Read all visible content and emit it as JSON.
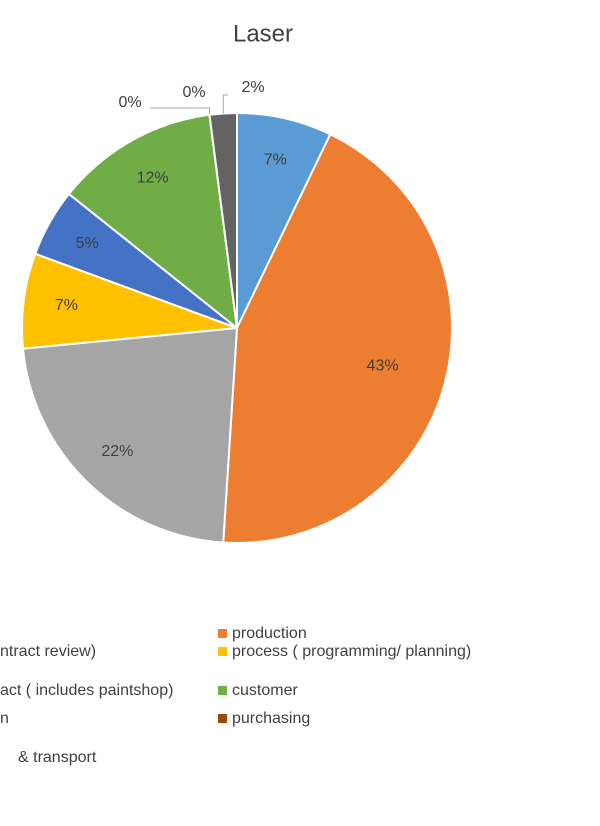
{
  "chart_data": {
    "type": "pie",
    "title": "Laser",
    "categories": [
      null,
      "production",
      "ntract review)",
      "process ( programming/ planning)",
      "act ( includes paintshop)",
      "customer",
      "n",
      "purchasing",
      "& transport"
    ],
    "values": [
      7,
      43,
      22,
      7,
      5,
      12,
      0,
      0,
      2
    ],
    "value_labels": [
      "7%",
      "43%",
      "22%",
      "7%",
      "5%",
      "12%",
      "0%",
      "0%",
      "2%"
    ],
    "colors": [
      "#5b9bd5",
      "#ed7d31",
      "#a5a5a5",
      "#ffc000",
      "#4472c4",
      "#70ad47",
      "#255e91",
      "#9e480e",
      "#636363"
    ]
  }
}
